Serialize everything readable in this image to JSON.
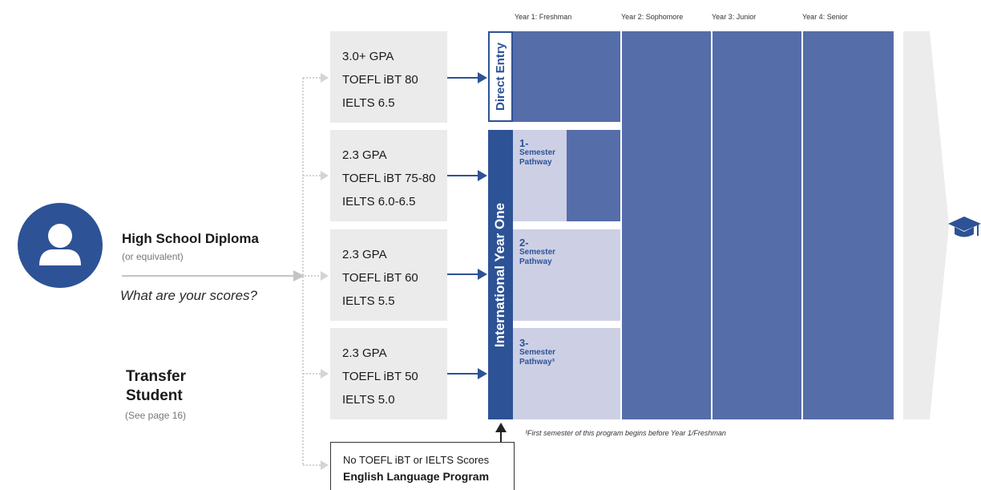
{
  "student": {
    "title": "High School Diploma",
    "subtitle": "(or equivalent)",
    "question": "What are your scores?",
    "transfer_title": "Transfer Student",
    "transfer_subtitle": "(See page 16)"
  },
  "years": [
    "Year 1: Freshman",
    "Year 2: Sophomore",
    "Year 3: Junior",
    "Year 4: Senior"
  ],
  "score_rows": [
    {
      "gpa": "3.0+ GPA",
      "toefl": "TOEFL iBT 80",
      "ielts": "IELTS 6.5"
    },
    {
      "gpa": "2.3 GPA",
      "toefl": "TOEFL iBT 75-80",
      "ielts": "IELTS 6.0-6.5"
    },
    {
      "gpa": "2.3 GPA",
      "toefl": "TOEFL iBT 60",
      "ielts": "IELTS 5.5"
    },
    {
      "gpa": "2.3 GPA",
      "toefl": "TOEFL iBT 50",
      "ielts": "IELTS 5.0"
    }
  ],
  "no_scores": {
    "line1": "No TOEFL iBT or IELTS Scores",
    "line2": "English Language Program"
  },
  "programs": {
    "direct": "Direct Entry",
    "iyo": "International Year One"
  },
  "pathways": [
    {
      "num": "1-",
      "line1": "Semester",
      "line2": "Pathway"
    },
    {
      "num": "2-",
      "line1": "Semester",
      "line2": "Pathway"
    },
    {
      "num": "3-",
      "line1": "Semester",
      "line2": "Pathway³"
    }
  ],
  "footnote": "³First semester of this program begins before Year 1/Freshman",
  "icons": {
    "avatar": "person-icon",
    "grad": "graduation-cap-icon"
  },
  "colors": {
    "primary": "#2d5296",
    "dark": "#556da8",
    "light": "#cdd0e5",
    "box": "#ebebeb"
  }
}
